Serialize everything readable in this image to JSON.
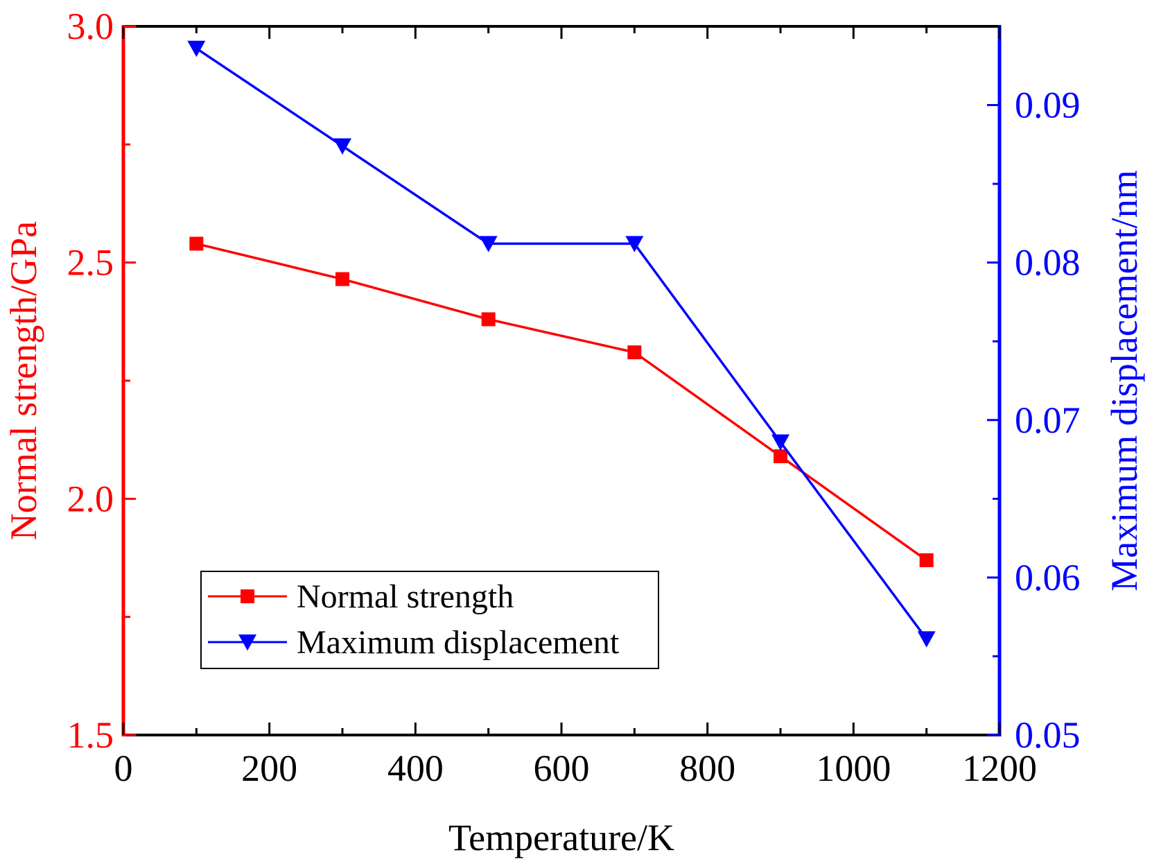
{
  "chart_data": {
    "type": "line",
    "xlabel": "Temperature/K",
    "ylabel_left": "Normal strength/GPa",
    "ylabel_right": "Maximum displacement/nm",
    "xlim": [
      0,
      1200
    ],
    "ylim_left": [
      1.5,
      3.0
    ],
    "ylim_right": [
      0.05,
      0.095
    ],
    "x_ticks": [
      "0",
      "200",
      "400",
      "600",
      "800",
      "1000",
      "1200"
    ],
    "y_left_ticks": [
      "1.5",
      "2.0",
      "2.5",
      "3.0"
    ],
    "y_right_ticks": [
      "0.05",
      "0.06",
      "0.07",
      "0.08",
      "0.09"
    ],
    "grid": false,
    "legend_position": "bottom-left",
    "series": [
      {
        "name": "Normal strength",
        "axis": "left",
        "color": "#ff0000",
        "marker": "square",
        "x": [
          100,
          300,
          500,
          700,
          900,
          1100
        ],
        "values": [
          2.54,
          2.465,
          2.38,
          2.31,
          2.09,
          1.87
        ]
      },
      {
        "name": "Maximum displacement",
        "axis": "right",
        "color": "#0000ff",
        "marker": "triangle-down",
        "x": [
          100,
          300,
          500,
          700,
          900,
          1100
        ],
        "values": [
          0.0936,
          0.0874,
          0.0812,
          0.0812,
          0.0686,
          0.0561
        ]
      }
    ]
  }
}
